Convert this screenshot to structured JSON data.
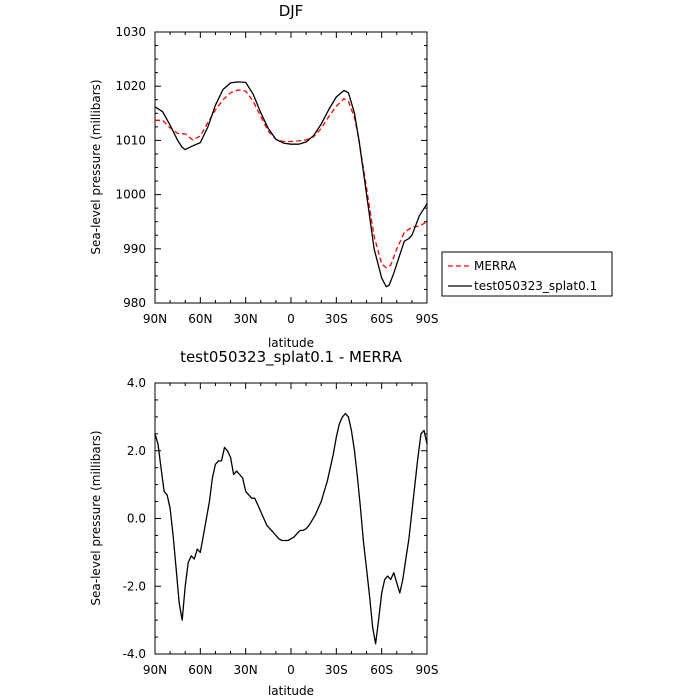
{
  "chart_data": [
    {
      "type": "line",
      "title": "DJF",
      "xlabel": "latitude",
      "ylabel": "Sea-level pressure (millibars)",
      "xlim": [
        90,
        -90
      ],
      "ylim": [
        980,
        1030
      ],
      "xticks": [
        90,
        60,
        30,
        0,
        -30,
        -60,
        -90
      ],
      "xtick_labels": [
        "90N",
        "60N",
        "30N",
        "0",
        "30S",
        "60S",
        "90S"
      ],
      "yticks": [
        980,
        990,
        1000,
        1010,
        1020,
        1030
      ],
      "ytick_labels": [
        "980",
        "990",
        "1000",
        "1010",
        "1020",
        "1030"
      ],
      "legend_position": "outside-right",
      "series": [
        {
          "name": "MERRA",
          "style": "dashed",
          "color": "#ff0000",
          "x": [
            90,
            85,
            80,
            75,
            70,
            65,
            60,
            55,
            50,
            45,
            40,
            35,
            30,
            25,
            20,
            15,
            10,
            5,
            0,
            -5,
            -10,
            -15,
            -20,
            -25,
            -30,
            -35,
            -38,
            -42,
            -45,
            -50,
            -55,
            -60,
            -63,
            -66,
            -70,
            -75,
            -80,
            -85,
            -90
          ],
          "y": [
            1013.7,
            1013.7,
            1012.3,
            1011.3,
            1011.2,
            1010.1,
            1010.8,
            1013.3,
            1015.6,
            1017.5,
            1018.8,
            1019.3,
            1019.1,
            1017.2,
            1014.4,
            1011.7,
            1010.2,
            1009.8,
            1009.8,
            1009.9,
            1010.1,
            1010.7,
            1012.2,
            1014.4,
            1016.3,
            1017.7,
            1017.2,
            1014.2,
            1010.0,
            1001.1,
            992.3,
            987.2,
            986.5,
            987.0,
            990.0,
            993.0,
            994.0,
            994.2,
            995.0
          ]
        },
        {
          "name": "test050323_splat0.1",
          "style": "solid",
          "color": "#000000",
          "x": [
            90,
            85,
            80,
            75,
            72,
            70,
            65,
            60,
            55,
            50,
            45,
            40,
            35,
            30,
            25,
            20,
            15,
            10,
            5,
            0,
            -5,
            -10,
            -15,
            -20,
            -25,
            -30,
            -35,
            -38,
            -42,
            -45,
            -50,
            -55,
            -60,
            -63,
            -65,
            -68,
            -72,
            -75,
            -78,
            -80,
            -85,
            -90
          ],
          "y": [
            1016.2,
            1015.3,
            1012.8,
            1010.0,
            1008.7,
            1008.3,
            1009.0,
            1009.6,
            1012.5,
            1016.5,
            1019.4,
            1020.6,
            1020.8,
            1020.7,
            1018.5,
            1015.1,
            1012.2,
            1010.2,
            1009.5,
            1009.3,
            1009.3,
            1009.7,
            1010.9,
            1013.0,
            1015.7,
            1018.0,
            1019.2,
            1018.8,
            1015.0,
            1010.0,
            1000.0,
            990.0,
            984.6,
            983.0,
            983.3,
            985.5,
            988.9,
            991.4,
            991.9,
            992.5,
            996.1,
            998.3
          ]
        }
      ]
    },
    {
      "type": "line",
      "title": "test050323_splat0.1 - MERRA",
      "xlabel": "latitude",
      "ylabel": "Sea-level pressure (millibars)",
      "xlim": [
        90,
        -90
      ],
      "ylim": [
        -4.0,
        4.0
      ],
      "xticks": [
        90,
        60,
        30,
        0,
        -30,
        -60,
        -90
      ],
      "xtick_labels": [
        "90N",
        "60N",
        "30N",
        "0",
        "30S",
        "60S",
        "90S"
      ],
      "yticks": [
        -4.0,
        -2.0,
        0.0,
        2.0,
        4.0
      ],
      "ytick_labels": [
        "-4.0",
        "-2.0",
        "0.0",
        "2.0",
        "4.0"
      ],
      "series": [
        {
          "style": "solid",
          "color": "#000000",
          "x": [
            90,
            88,
            86,
            84,
            82,
            80,
            78,
            76,
            74,
            72,
            70,
            68,
            66,
            64,
            62,
            60,
            58,
            56,
            54,
            52,
            50,
            48,
            46,
            44,
            42,
            40,
            38,
            36,
            34,
            32,
            30,
            28,
            26,
            24,
            22,
            20,
            18,
            16,
            14,
            12,
            10,
            8,
            6,
            4,
            2,
            0,
            -2,
            -4,
            -6,
            -8,
            -10,
            -12,
            -14,
            -16,
            -18,
            -20,
            -22,
            -24,
            -26,
            -28,
            -30,
            -32,
            -34,
            -36,
            -38,
            -40,
            -42,
            -44,
            -46,
            -48,
            -50,
            -52,
            -54,
            -56,
            -58,
            -60,
            -62,
            -64,
            -66,
            -68,
            -70,
            -72,
            -74,
            -76,
            -78,
            -80,
            -82,
            -84,
            -86,
            -88,
            -90
          ],
          "y": [
            2.5,
            2.2,
            1.5,
            0.8,
            0.7,
            0.3,
            -0.5,
            -1.5,
            -2.5,
            -3.0,
            -2.0,
            -1.3,
            -1.1,
            -1.2,
            -0.9,
            -1.0,
            -0.5,
            0.0,
            0.5,
            1.2,
            1.6,
            1.7,
            1.7,
            2.1,
            2.0,
            1.8,
            1.3,
            1.4,
            1.3,
            1.2,
            0.8,
            0.7,
            0.6,
            0.6,
            0.4,
            0.2,
            0.0,
            -0.2,
            -0.3,
            -0.4,
            -0.5,
            -0.6,
            -0.65,
            -0.65,
            -0.65,
            -0.6,
            -0.55,
            -0.45,
            -0.35,
            -0.35,
            -0.3,
            -0.2,
            -0.05,
            0.1,
            0.3,
            0.5,
            0.8,
            1.1,
            1.5,
            1.9,
            2.4,
            2.8,
            3.0,
            3.1,
            3.0,
            2.6,
            2.0,
            1.2,
            0.3,
            -0.7,
            -1.5,
            -2.3,
            -3.2,
            -3.7,
            -3.0,
            -2.2,
            -1.8,
            -1.7,
            -1.8,
            -1.6,
            -1.9,
            -2.2,
            -1.8,
            -1.2,
            -0.6,
            0.2,
            1.0,
            1.8,
            2.5,
            2.6,
            2.2
          ]
        }
      ]
    }
  ]
}
